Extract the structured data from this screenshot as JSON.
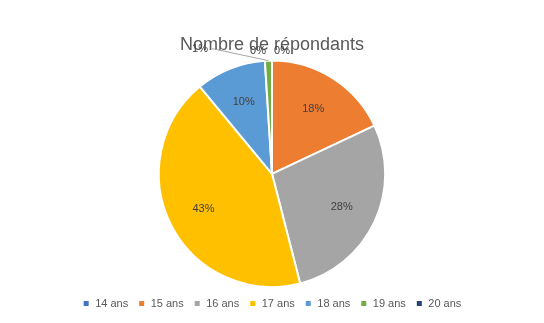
{
  "chart_data": {
    "type": "pie",
    "title": "Nombre de répondants",
    "categories": [
      "14 ans",
      "15 ans",
      "16 ans",
      "17 ans",
      "18 ans",
      "19 ans",
      "20 ans"
    ],
    "values": [
      0,
      18,
      28,
      43,
      10,
      1,
      0
    ],
    "value_labels": [
      "0%",
      "18%",
      "28%",
      "43%",
      "10%",
      "1%",
      "0%"
    ],
    "colors": [
      "#4472c4",
      "#ed7d31",
      "#a5a5a5",
      "#ffc000",
      "#5b9bd5",
      "#70ad47",
      "#264478"
    ],
    "legend": "bottom",
    "data_labels": true
  }
}
